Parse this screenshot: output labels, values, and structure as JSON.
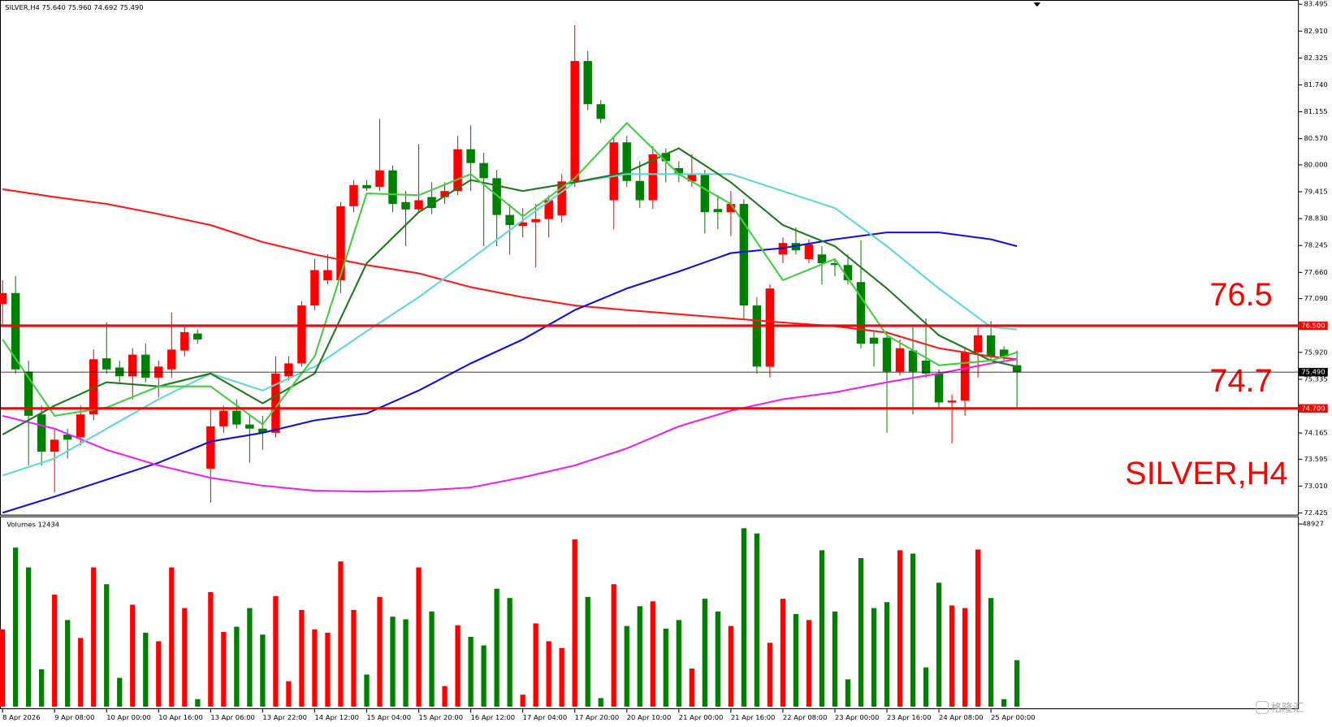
{
  "chart_data": {
    "type": "candlestick",
    "symbol_info": "SILVER,H4  75.640 75.960 74.692 75.490",
    "watermark_symbol": "SILVER,H4",
    "volume_title": "Volumes 12434",
    "brand": "格隆汇",
    "up_color": "#ff0000",
    "down_color": "#008000",
    "ylim": [
      72.425,
      83.495
    ],
    "yticks": [
      {
        "value": 83.495,
        "label": "83.495"
      },
      {
        "value": 82.91,
        "label": "82.910"
      },
      {
        "value": 82.325,
        "label": "82.325"
      },
      {
        "value": 81.74,
        "label": "81.740"
      },
      {
        "value": 81.155,
        "label": "81.155"
      },
      {
        "value": 80.57,
        "label": "80.570"
      },
      {
        "value": 80,
        "label": "80.000"
      },
      {
        "value": 79.415,
        "label": "79.415"
      },
      {
        "value": 78.83,
        "label": "78.830"
      },
      {
        "value": 78.245,
        "label": "78.245"
      },
      {
        "value": 77.66,
        "label": "77.660"
      },
      {
        "value": 77.09,
        "label": "77.090"
      },
      {
        "value": 75.92,
        "label": "75.920"
      },
      {
        "value": 75.335,
        "label": "75.335"
      },
      {
        "value": 74.165,
        "label": "74.165"
      },
      {
        "value": 73.595,
        "label": "73.595"
      },
      {
        "value": 73.01,
        "label": "73.010"
      },
      {
        "value": 72.425,
        "label": "72.425"
      }
    ],
    "levels": [
      {
        "value": 76.5,
        "label": "76.5",
        "axis_label": "76.500",
        "color": "#ff0000"
      },
      {
        "value": 74.7,
        "label": "74.7",
        "axis_label": "74.700",
        "color": "#ff0000"
      }
    ],
    "last": {
      "value": 75.49,
      "label": "75.490"
    },
    "time_labels": [
      "8 Apr 2026",
      "9 Apr 08:00",
      "10 Apr 00:00",
      "10 Apr 16:00",
      "13 Apr 06:00",
      "13 Apr 22:00",
      "14 Apr 12:00",
      "15 Apr 04:00",
      "15 Apr 20:00",
      "16 Apr 12:00",
      "17 Apr 04:00",
      "17 Apr 20:00",
      "20 Apr 10:00",
      "21 Apr 00:00",
      "21 Apr 16:00",
      "22 Apr 08:00",
      "23 Apr 00:00",
      "23 Apr 16:00",
      "24 Apr 08:00",
      "25 Apr 00:00"
    ],
    "ohlc": [
      [
        76.97,
        77.49,
        76.47,
        77.21
      ],
      [
        77.21,
        77.58,
        75.46,
        75.55
      ],
      [
        75.5,
        75.74,
        73.46,
        74.54
      ],
      [
        74.57,
        74.76,
        73.46,
        73.76
      ],
      [
        73.76,
        74.26,
        72.87,
        74.02
      ],
      [
        74.13,
        74.26,
        73.61,
        74.02
      ],
      [
        74.07,
        74.76,
        73.89,
        74.57
      ],
      [
        74.57,
        75.98,
        74.44,
        75.77
      ],
      [
        75.79,
        76.57,
        75.46,
        75.55
      ],
      [
        75.59,
        75.74,
        75.27,
        75.4
      ],
      [
        75.4,
        76.01,
        74.9,
        75.87
      ],
      [
        75.87,
        76.11,
        75.27,
        75.37
      ],
      [
        75.37,
        75.74,
        74.94,
        75.61
      ],
      [
        75.55,
        76.79,
        75.37,
        75.98
      ],
      [
        75.96,
        76.47,
        75.83,
        76.36
      ],
      [
        76.33,
        76.42,
        76.11,
        76.2
      ],
      [
        73.39,
        74.72,
        72.65,
        74.31
      ],
      [
        74.31,
        74.76,
        74.17,
        74.65
      ],
      [
        74.65,
        74.9,
        74.26,
        74.35
      ],
      [
        74.35,
        74.54,
        73.52,
        74.26
      ],
      [
        74.26,
        74.54,
        73.8,
        74.17
      ],
      [
        74.17,
        75.83,
        74.07,
        75.46
      ],
      [
        75.4,
        75.83,
        75.31,
        75.68
      ],
      [
        75.68,
        77.03,
        75.61,
        76.94
      ],
      [
        76.94,
        77.95,
        76.84,
        77.71
      ],
      [
        77.49,
        78.05,
        77.4,
        77.71
      ],
      [
        77.49,
        79.19,
        77.21,
        79.1
      ],
      [
        79.1,
        79.67,
        78.97,
        79.56
      ],
      [
        79.56,
        79.67,
        79.43,
        79.49
      ],
      [
        79.52,
        81,
        79.43,
        79.88
      ],
      [
        79.88,
        79.99,
        78.97,
        79.15
      ],
      [
        79.19,
        79.43,
        78.23,
        79.03
      ],
      [
        79.03,
        80.45,
        78.97,
        79.23
      ],
      [
        79.3,
        79.62,
        78.93,
        79.06
      ],
      [
        79.3,
        79.62,
        79.15,
        79.43
      ],
      [
        79.43,
        80.63,
        79.34,
        80.34
      ],
      [
        80.34,
        80.86,
        79.43,
        80.04
      ],
      [
        80.04,
        80.26,
        78.23,
        79.71
      ],
      [
        79.71,
        79.89,
        78.23,
        78.91
      ],
      [
        78.91,
        79.15,
        78.05,
        78.69
      ],
      [
        78.67,
        79.06,
        78.42,
        78.75
      ],
      [
        78.75,
        79.15,
        77.77,
        78.82
      ],
      [
        78.82,
        79.34,
        78.42,
        79.23
      ],
      [
        78.9,
        79.8,
        78.75,
        79.64
      ],
      [
        79.64,
        83.04,
        79.52,
        82.26
      ],
      [
        82.26,
        82.48,
        81.19,
        81.32
      ],
      [
        81.32,
        81.41,
        80.91,
        81
      ],
      [
        79.23,
        80.63,
        78.6,
        80.49
      ],
      [
        80.49,
        80.63,
        79.52,
        79.65
      ],
      [
        79.65,
        80.08,
        79.06,
        79.23
      ],
      [
        79.23,
        80.41,
        79.04,
        80.23
      ],
      [
        80.26,
        80.36,
        79.62,
        80.08
      ],
      [
        79.93,
        80.08,
        79.62,
        79.8
      ],
      [
        79.64,
        80.23,
        79.52,
        79.78
      ],
      [
        79.78,
        79.89,
        78.51,
        78.97
      ],
      [
        79.04,
        79.34,
        78.6,
        78.97
      ],
      [
        78.97,
        79.43,
        78.45,
        79.15
      ],
      [
        79.15,
        79.25,
        76.66,
        76.94
      ],
      [
        76.94,
        77.12,
        75.46,
        75.61
      ],
      [
        75.61,
        77.4,
        75.37,
        77.31
      ],
      [
        78.05,
        78.42,
        77.86,
        78.3
      ],
      [
        78.3,
        78.64,
        78.05,
        78.14
      ],
      [
        77.95,
        78.38,
        77.86,
        78.27
      ],
      [
        78.05,
        78.23,
        77.4,
        77.86
      ],
      [
        77.86,
        77.95,
        77.58,
        77.82
      ],
      [
        77.82,
        78.05,
        77.4,
        77.49
      ],
      [
        77.45,
        78.36,
        76.01,
        76.11
      ],
      [
        76.24,
        76.38,
        75.61,
        76.11
      ],
      [
        76.24,
        76.38,
        74.17,
        75.5
      ],
      [
        75.5,
        76.2,
        75.42,
        76.01
      ],
      [
        75.96,
        76.47,
        74.57,
        75.5
      ],
      [
        75.74,
        76.66,
        75.37,
        75.46
      ],
      [
        75.46,
        75.55,
        74.72,
        74.83
      ],
      [
        74.83,
        75,
        73.94,
        74.87
      ],
      [
        74.87,
        76.01,
        74.54,
        75.92
      ],
      [
        75.92,
        76.47,
        75.37,
        76.29
      ],
      [
        76.29,
        76.6,
        75.74,
        75.83
      ],
      [
        75.98,
        76.05,
        75.74,
        75.83
      ],
      [
        75.64,
        75.96,
        74.692,
        75.49
      ]
    ],
    "volumes": [
      20700,
      42600,
      37300,
      10000,
      30000,
      23200,
      18400,
      37300,
      32800,
      7700,
      27300,
      19800,
      17500,
      37300,
      26400,
      2000,
      30700,
      20000,
      21400,
      26400,
      19300,
      29600,
      6800,
      25900,
      20700,
      19800,
      38900,
      25900,
      8600,
      29400,
      24100,
      23400,
      37300,
      25500,
      5500,
      21800,
      18700,
      16400,
      31600,
      29100,
      3200,
      22300,
      17500,
      15700,
      44800,
      29400,
      2300,
      32800,
      21600,
      26900,
      28200,
      20900,
      23200,
      10200,
      28900,
      25500,
      21600,
      47800,
      46400,
      17100,
      28900,
      24800,
      23200,
      41900,
      25500,
      7300,
      39800,
      26400,
      28000,
      41900,
      41000,
      10500,
      33200,
      27100,
      26400,
      42100,
      29100,
      2000,
      12434
    ],
    "vlim": [
      0,
      48927
    ],
    "vticks": [
      48927
    ],
    "ma_x": [
      0,
      4,
      8,
      12,
      16,
      20,
      24,
      28,
      32,
      36,
      40,
      44,
      48,
      52,
      56,
      60,
      64,
      68,
      72,
      76,
      78
    ],
    "series": [
      {
        "color": "#ff1a1a",
        "values": [
          79.47,
          79.3,
          79.15,
          78.93,
          78.69,
          78.32,
          78.05,
          77.82,
          77.64,
          77.34,
          77.12,
          76.94,
          76.84,
          76.75,
          76.66,
          76.57,
          76.49,
          76.35,
          76.01,
          75.83,
          75.77
        ]
      },
      {
        "color": "#1010e0",
        "values": [
          72.43,
          72.78,
          73.15,
          73.52,
          73.98,
          74.17,
          74.44,
          74.59,
          75.09,
          75.68,
          76.2,
          76.84,
          77.31,
          77.68,
          78.08,
          78.19,
          78.38,
          78.53,
          78.53,
          78.38,
          78.23
        ]
      },
      {
        "color": "#ee22ee",
        "values": [
          74.54,
          74.26,
          73.8,
          73.46,
          73.19,
          73.02,
          72.91,
          72.89,
          72.91,
          72.98,
          73.2,
          73.46,
          73.83,
          74.31,
          74.65,
          74.9,
          75.05,
          75.27,
          75.46,
          75.68,
          75.77
        ]
      },
      {
        "color": "#5fd8d0",
        "values": [
          73.24,
          73.61,
          74.26,
          74.9,
          75.46,
          75.09,
          75.61,
          76.38,
          77.12,
          77.95,
          78.79,
          79.62,
          79.8,
          79.8,
          79.8,
          79.43,
          79.06,
          78.23,
          77.31,
          76.47,
          76.42
        ]
      },
      {
        "color": "#1f7a1f",
        "values": [
          74.13,
          74.76,
          75.27,
          75.18,
          75.46,
          74.81,
          75.46,
          77.86,
          78.97,
          79.67,
          79.43,
          79.62,
          79.84,
          80.36,
          79.62,
          78.69,
          78.23,
          77.31,
          76.29,
          75.74,
          75.61
        ]
      },
      {
        "color": "#44cc44",
        "values": [
          76.2,
          74.54,
          74.72,
          75.18,
          75.18,
          74.35,
          75.83,
          79.38,
          79.34,
          79.8,
          78.88,
          79.71,
          80.91,
          79.8,
          79.15,
          77.49,
          77.95,
          76.29,
          75.64,
          75.74,
          75.92
        ]
      }
    ]
  }
}
